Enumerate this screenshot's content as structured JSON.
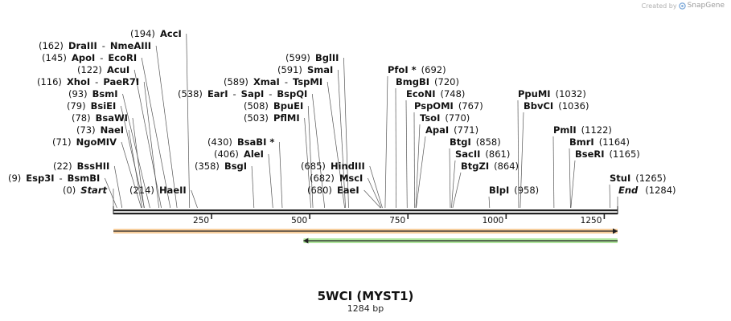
{
  "credit": {
    "prefix": "Created by",
    "brand": "SnapGene"
  },
  "sequence": {
    "name": "5WCI (MYST1)",
    "length_label": "1284 bp",
    "length": 1284
  },
  "colors": {
    "backbone": "#222222",
    "orf_forward": "#f0a64a",
    "orf_reverse": "#6ed14a",
    "leader": "#555555"
  },
  "ticks": [
    250,
    500,
    750,
    1000,
    1250
  ],
  "features": [
    {
      "name": "orf-forward",
      "start": 0,
      "end": 1284,
      "direction": "forward"
    },
    {
      "name": "orf-reverse",
      "start": 484,
      "end": 1284,
      "direction": "reverse"
    }
  ],
  "ends": [
    {
      "pos": 0,
      "pos_label": "(0)",
      "name": "Start"
    },
    {
      "pos": 1284,
      "pos_label": "(1284)",
      "name": "End"
    }
  ],
  "sites": [
    {
      "pos": 194,
      "pos_label": "(194)",
      "names": [
        "AccI"
      ]
    },
    {
      "pos": 162,
      "pos_label": "(162)",
      "names": [
        "DraIII",
        "NmeAIII"
      ]
    },
    {
      "pos": 145,
      "pos_label": "(145)",
      "names": [
        "ApoI",
        "EcoRI"
      ]
    },
    {
      "pos": 122,
      "pos_label": "(122)",
      "names": [
        "AcuI"
      ]
    },
    {
      "pos": 116,
      "pos_label": "(116)",
      "names": [
        "XhoI",
        "PaeR7I"
      ]
    },
    {
      "pos": 93,
      "pos_label": "(93)",
      "names": [
        "BsmI"
      ]
    },
    {
      "pos": 79,
      "pos_label": "(79)",
      "names": [
        "BsiEI"
      ]
    },
    {
      "pos": 78,
      "pos_label": "(78)",
      "names": [
        "BsaWI"
      ]
    },
    {
      "pos": 73,
      "pos_label": "(73)",
      "names": [
        "NaeI"
      ]
    },
    {
      "pos": 71,
      "pos_label": "(71)",
      "names": [
        "NgoMIV"
      ]
    },
    {
      "pos": 22,
      "pos_label": "(22)",
      "names": [
        "BssHII"
      ]
    },
    {
      "pos": 9,
      "pos_label": "(9)",
      "names": [
        "Esp3I",
        "BsmBI"
      ]
    },
    {
      "pos": 214,
      "pos_label": "(214)",
      "names": [
        "HaeII"
      ]
    },
    {
      "pos": 538,
      "pos_label": "(538)",
      "names": [
        "EarI",
        "SapI",
        "BspQI"
      ]
    },
    {
      "pos": 589,
      "pos_label": "(589)",
      "names": [
        "XmaI",
        "TspMI"
      ]
    },
    {
      "pos": 508,
      "pos_label": "(508)",
      "names": [
        "BpuEI"
      ]
    },
    {
      "pos": 503,
      "pos_label": "(503)",
      "names": [
        "PflMI"
      ]
    },
    {
      "pos": 430,
      "pos_label": "(430)",
      "names": [
        "BsaBI *"
      ]
    },
    {
      "pos": 406,
      "pos_label": "(406)",
      "names": [
        "AleI"
      ]
    },
    {
      "pos": 358,
      "pos_label": "(358)",
      "names": [
        "BsgI"
      ]
    },
    {
      "pos": 599,
      "pos_label": "(599)",
      "names": [
        "BglII"
      ]
    },
    {
      "pos": 591,
      "pos_label": "(591)",
      "names": [
        "SmaI"
      ]
    },
    {
      "pos": 685,
      "pos_label": "(685)",
      "names": [
        "HindIII"
      ]
    },
    {
      "pos": 682,
      "pos_label": "(682)",
      "names": [
        "MscI"
      ]
    },
    {
      "pos": 680,
      "pos_label": "(680)",
      "names": [
        "EaeI"
      ]
    },
    {
      "pos": 692,
      "pos_label": "(692)",
      "names": [
        "PfoI *"
      ]
    },
    {
      "pos": 720,
      "pos_label": "(720)",
      "names": [
        "BmgBI"
      ]
    },
    {
      "pos": 748,
      "pos_label": "(748)",
      "names": [
        "EcoNI"
      ]
    },
    {
      "pos": 767,
      "pos_label": "(767)",
      "names": [
        "PspOMI"
      ]
    },
    {
      "pos": 770,
      "pos_label": "(770)",
      "names": [
        "TsoI"
      ]
    },
    {
      "pos": 771,
      "pos_label": "(771)",
      "names": [
        "ApaI"
      ]
    },
    {
      "pos": 858,
      "pos_label": "(858)",
      "names": [
        "BtgI"
      ]
    },
    {
      "pos": 861,
      "pos_label": "(861)",
      "names": [
        "SacII"
      ]
    },
    {
      "pos": 864,
      "pos_label": "(864)",
      "names": [
        "BtgZI"
      ]
    },
    {
      "pos": 958,
      "pos_label": "(958)",
      "names": [
        "BlpI"
      ]
    },
    {
      "pos": 1032,
      "pos_label": "(1032)",
      "names": [
        "PpuMI"
      ]
    },
    {
      "pos": 1036,
      "pos_label": "(1036)",
      "names": [
        "BbvCI"
      ]
    },
    {
      "pos": 1122,
      "pos_label": "(1122)",
      "names": [
        "PmlI"
      ]
    },
    {
      "pos": 1164,
      "pos_label": "(1164)",
      "names": [
        "BmrI"
      ]
    },
    {
      "pos": 1165,
      "pos_label": "(1165)",
      "names": [
        "BseRI"
      ]
    },
    {
      "pos": 1265,
      "pos_label": "(1265)",
      "names": [
        "StuI"
      ]
    }
  ]
}
